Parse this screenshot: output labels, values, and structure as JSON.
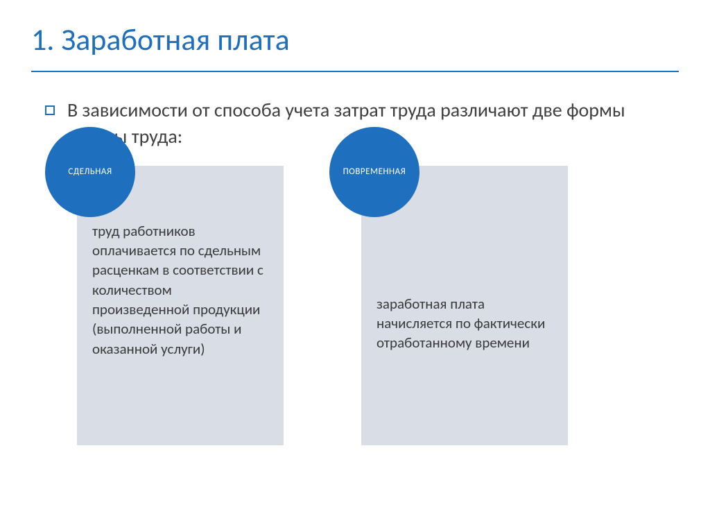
{
  "title": "1. Заработная плата",
  "intro": "В зависимости от способа учета затрат труда различают две формы оплаты труда:",
  "colors": {
    "accent": "#1f6fbf",
    "card_bg": "#d8dde6",
    "text": "#404040"
  },
  "cards": [
    {
      "badge": "СДЕЛЬНАЯ",
      "body": "труд работников оплачивается по сдельным расценкам в соответствии с количеством произведенной продукции (выполненной работы и оказанной услуги)"
    },
    {
      "badge": "ПОВРЕМЕННАЯ",
      "body": "заработная плата начисляется по фактически отработанному времени"
    }
  ]
}
